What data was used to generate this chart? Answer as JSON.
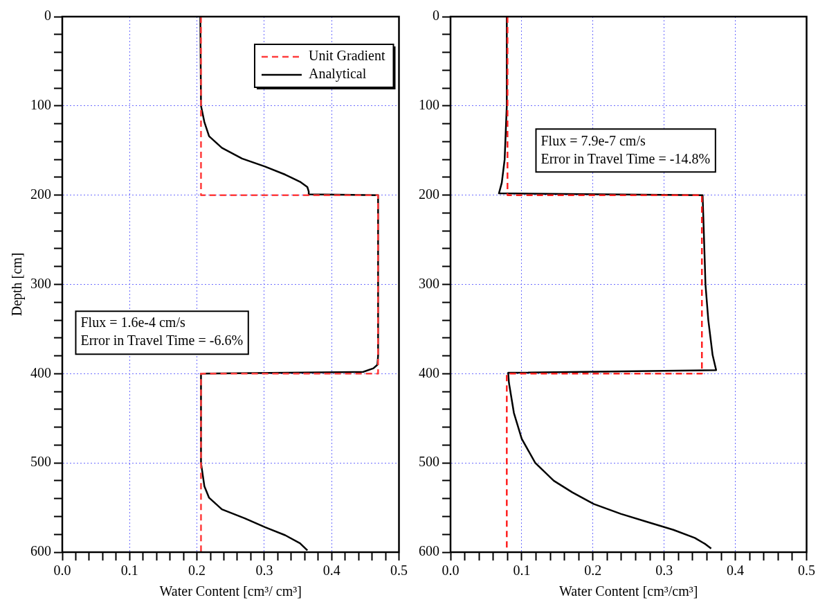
{
  "chart_data": [
    {
      "type": "line",
      "xlabel": "Water Content [cm³/ cm³]",
      "ylabel": "Depth [cm]",
      "xlim": [
        0,
        0.5
      ],
      "ylim": [
        600,
        0
      ],
      "xticks": [
        {
          "value": 0,
          "label": "0.0"
        },
        {
          "value": 0.02,
          "label": null
        },
        {
          "value": 0.04,
          "label": null
        },
        {
          "value": 0.06,
          "label": null
        },
        {
          "value": 0.08,
          "label": null
        },
        {
          "value": 0.1,
          "label": "0.1"
        },
        {
          "value": 0.12,
          "label": null
        },
        {
          "value": 0.14,
          "label": null
        },
        {
          "value": 0.16,
          "label": null
        },
        {
          "value": 0.18,
          "label": null
        },
        {
          "value": 0.2,
          "label": "0.2"
        },
        {
          "value": 0.22,
          "label": null
        },
        {
          "value": 0.24,
          "label": null
        },
        {
          "value": 0.26,
          "label": null
        },
        {
          "value": 0.28,
          "label": null
        },
        {
          "value": 0.3,
          "label": "0.3"
        },
        {
          "value": 0.32,
          "label": null
        },
        {
          "value": 0.34,
          "label": null
        },
        {
          "value": 0.36,
          "label": null
        },
        {
          "value": 0.38,
          "label": null
        },
        {
          "value": 0.4,
          "label": "0.4"
        },
        {
          "value": 0.42,
          "label": null
        },
        {
          "value": 0.44,
          "label": null
        },
        {
          "value": 0.46,
          "label": null
        },
        {
          "value": 0.48,
          "label": null
        },
        {
          "value": 0.5,
          "label": "0.5"
        }
      ],
      "yticks": [
        0,
        {
          "value": 20,
          "label": null
        },
        {
          "value": 40,
          "label": null
        },
        {
          "value": 60,
          "label": null
        },
        {
          "value": 80,
          "label": null
        },
        100,
        {
          "value": 120,
          "label": null
        },
        {
          "value": 140,
          "label": null
        },
        {
          "value": 160,
          "label": null
        },
        {
          "value": 180,
          "label": null
        },
        200,
        {
          "value": 220,
          "label": null
        },
        {
          "value": 240,
          "label": null
        },
        {
          "value": 260,
          "label": null
        },
        {
          "value": 280,
          "label": null
        },
        300,
        {
          "value": 320,
          "label": null
        },
        {
          "value": 340,
          "label": null
        },
        {
          "value": 360,
          "label": null
        },
        {
          "value": 380,
          "label": null
        },
        400,
        {
          "value": 420,
          "label": null
        },
        {
          "value": 440,
          "label": null
        },
        {
          "value": 460,
          "label": null
        },
        {
          "value": 480,
          "label": null
        },
        500,
        {
          "value": 520,
          "label": null
        },
        {
          "value": 540,
          "label": null
        },
        {
          "value": 560,
          "label": null
        },
        {
          "value": 580,
          "label": null
        },
        600
      ],
      "grid": true,
      "legend": "top right",
      "annotations": [
        "Flux = 1.6e-4 cm/s",
        "Error in Travel Time = -6.6%"
      ],
      "series": [
        {
          "name": "Unit Gradient",
          "color": "#ff3b3b",
          "line_style": "dashed",
          "x": [
            0.206,
            0.206,
            0.469,
            0.469,
            0.206,
            0.206
          ],
          "values": [
            0,
            200,
            200,
            400,
            400,
            600
          ]
        },
        {
          "name": "Analytical",
          "color": "#000000",
          "line_style": "solid",
          "x": [
            0.205,
            0.206,
            0.211,
            0.218,
            0.237,
            0.267,
            0.301,
            0.331,
            0.353,
            0.364,
            0.366,
            0.366,
            0.469,
            0.469,
            0.468,
            0.462,
            0.447,
            0.206,
            0.206,
            0.206,
            0.211,
            0.218,
            0.237,
            0.271,
            0.301,
            0.331,
            0.353,
            0.364
          ],
          "values": [
            0,
            100,
            118,
            134,
            147,
            159,
            168,
            177,
            185,
            191,
            196,
            199,
            200,
            380,
            390,
            394,
            398,
            400,
            401,
            500,
            526,
            539,
            552,
            562,
            572,
            581,
            590,
            598
          ]
        }
      ]
    },
    {
      "type": "line",
      "xlabel": "Water Content [cm³/cm³]",
      "xlim": [
        0,
        0.5
      ],
      "ylim": [
        600,
        0
      ],
      "xticks": [
        {
          "value": 0,
          "label": "0.0"
        },
        {
          "value": 0.02,
          "label": null
        },
        {
          "value": 0.04,
          "label": null
        },
        {
          "value": 0.06,
          "label": null
        },
        {
          "value": 0.08,
          "label": null
        },
        {
          "value": 0.1,
          "label": "0.1"
        },
        {
          "value": 0.12,
          "label": null
        },
        {
          "value": 0.14,
          "label": null
        },
        {
          "value": 0.16,
          "label": null
        },
        {
          "value": 0.18,
          "label": null
        },
        {
          "value": 0.2,
          "label": "0.2"
        },
        {
          "value": 0.22,
          "label": null
        },
        {
          "value": 0.24,
          "label": null
        },
        {
          "value": 0.26,
          "label": null
        },
        {
          "value": 0.28,
          "label": null
        },
        {
          "value": 0.3,
          "label": "0.3"
        },
        {
          "value": 0.32,
          "label": null
        },
        {
          "value": 0.34,
          "label": null
        },
        {
          "value": 0.36,
          "label": null
        },
        {
          "value": 0.38,
          "label": null
        },
        {
          "value": 0.4,
          "label": "0.4"
        },
        {
          "value": 0.42,
          "label": null
        },
        {
          "value": 0.44,
          "label": null
        },
        {
          "value": 0.46,
          "label": null
        },
        {
          "value": 0.48,
          "label": null
        },
        {
          "value": 0.5,
          "label": "0.5"
        }
      ],
      "yticks": [
        0,
        {
          "value": 20,
          "label": null
        },
        {
          "value": 40,
          "label": null
        },
        {
          "value": 60,
          "label": null
        },
        {
          "value": 80,
          "label": null
        },
        100,
        {
          "value": 120,
          "label": null
        },
        {
          "value": 140,
          "label": null
        },
        {
          "value": 160,
          "label": null
        },
        {
          "value": 180,
          "label": null
        },
        200,
        {
          "value": 220,
          "label": null
        },
        {
          "value": 240,
          "label": null
        },
        {
          "value": 260,
          "label": null
        },
        {
          "value": 280,
          "label": null
        },
        300,
        {
          "value": 320,
          "label": null
        },
        {
          "value": 340,
          "label": null
        },
        {
          "value": 360,
          "label": null
        },
        {
          "value": 380,
          "label": null
        },
        400,
        {
          "value": 420,
          "label": null
        },
        {
          "value": 440,
          "label": null
        },
        {
          "value": 460,
          "label": null
        },
        {
          "value": 480,
          "label": null
        },
        500,
        {
          "value": 520,
          "label": null
        },
        {
          "value": 540,
          "label": null
        },
        {
          "value": 560,
          "label": null
        },
        {
          "value": 580,
          "label": null
        },
        600
      ],
      "grid": true,
      "annotations": [
        "Flux = 7.9e-7 cm/s",
        "Error in Travel Time = -14.8%"
      ],
      "series": [
        {
          "color": "#ff1f1f",
          "line_style": "dashed",
          "x": [
            0.08,
            0.08,
            0.353,
            0.353,
            0.079,
            0.079
          ],
          "values": [
            0,
            200,
            200,
            400,
            400,
            600
          ]
        },
        {
          "color": "#000000",
          "line_style": "solid",
          "x": [
            0.079,
            0.079,
            0.076,
            0.072,
            0.068,
            0.354,
            0.357,
            0.358,
            0.362,
            0.368,
            0.373,
            0.081,
            0.082,
            0.089,
            0.1,
            0.119,
            0.145,
            0.171,
            0.201,
            0.239,
            0.276,
            0.313,
            0.343,
            0.358,
            0.366
          ],
          "values": [
            0,
            100,
            160,
            186,
            198,
            200,
            274,
            300,
            340,
            379,
            396,
            399,
            410,
            444,
            473,
            500,
            520,
            533,
            546,
            557,
            566,
            575,
            584,
            591,
            596
          ]
        }
      ]
    }
  ]
}
